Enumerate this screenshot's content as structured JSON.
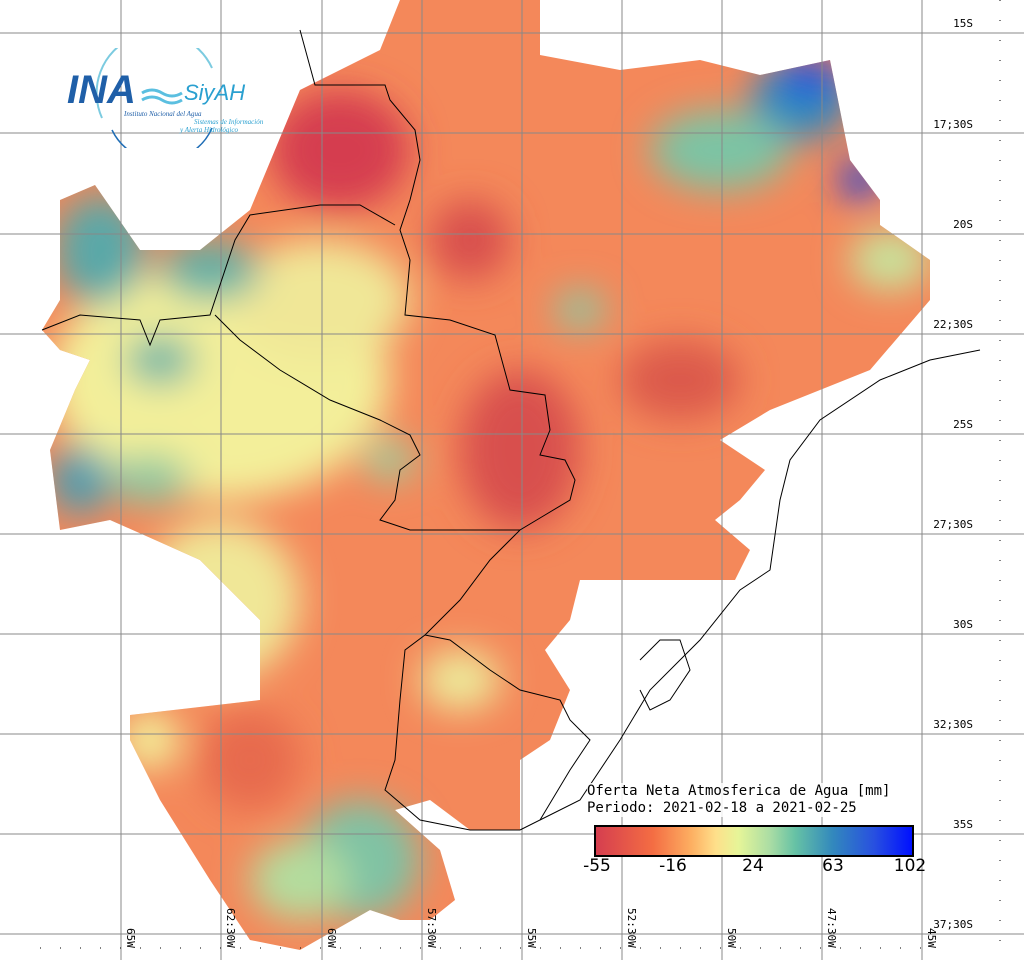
{
  "map": {
    "title_line1": "Oferta Neta Atmosferica de Agua [mm]",
    "title_line2": "Periodo: 2021-02-18 a 2021-02-25",
    "colorbar_ticks": [
      "-55",
      "-16",
      "24",
      "63",
      "102"
    ],
    "colorbar_colors": [
      "#d53e4f",
      "#f46d43",
      "#fee08b",
      "#e6f598",
      "#66c2a5",
      "#3288bd",
      "#0010ff"
    ],
    "lat_labels": [
      "15S",
      "17;30S",
      "20S",
      "22;30S",
      "25S",
      "27;30S",
      "30S",
      "32;30S",
      "35S",
      "37;30S"
    ],
    "lon_labels": [
      "65W",
      "62:30W",
      "60W",
      "57:30W",
      "55W",
      "52:30W",
      "50W",
      "47:30W",
      "45W"
    ]
  },
  "logo": {
    "name": "INA",
    "product": "SiyAH",
    "org": "Instituto Nacional del Agua",
    "subtitle1": "Sistemas de Información",
    "subtitle2": "y Alerta Hidrológico"
  }
}
